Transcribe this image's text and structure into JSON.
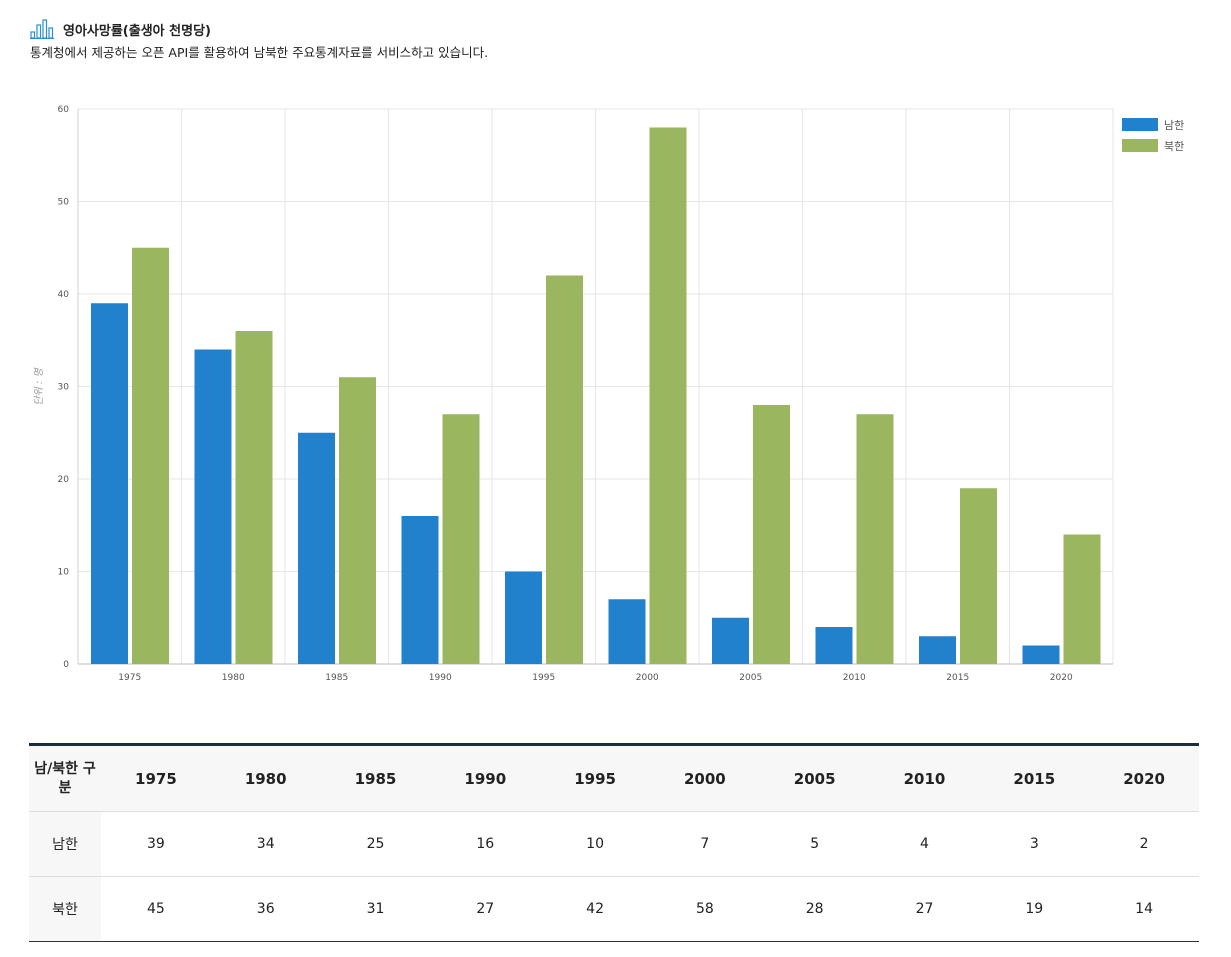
{
  "header": {
    "title": "영아사망률(출생아 천명당)",
    "subtitle": "통계청에서 제공하는 오픈 API를 활용하여 남북한 주요통계자료를 서비스하고 있습니다.",
    "icon": "bar-chart-icon"
  },
  "chart_data": {
    "type": "bar",
    "title": "",
    "xlabel": "",
    "ylabel": "단위 : 명",
    "categories": [
      "1975",
      "1980",
      "1985",
      "1990",
      "1995",
      "2000",
      "2005",
      "2010",
      "2015",
      "2020"
    ],
    "series": [
      {
        "name": "남한",
        "color": "#2281cd",
        "values": [
          39,
          34,
          25,
          16,
          10,
          7,
          5,
          4,
          3,
          2
        ]
      },
      {
        "name": "북한",
        "color": "#9ab65e",
        "values": [
          45,
          36,
          31,
          27,
          42,
          58,
          28,
          27,
          19,
          14
        ]
      }
    ],
    "ylim": [
      0,
      60
    ],
    "yticks": [
      0,
      10,
      20,
      30,
      40,
      50,
      60
    ],
    "grid": true,
    "legend": "top-right"
  },
  "table": {
    "corner_label": "남/북한 구분",
    "years": [
      "1975",
      "1980",
      "1985",
      "1990",
      "1995",
      "2000",
      "2005",
      "2010",
      "2015",
      "2020"
    ],
    "rows": [
      {
        "label": "남한",
        "values": [
          "39",
          "34",
          "25",
          "16",
          "10",
          "7",
          "5",
          "4",
          "3",
          "2"
        ]
      },
      {
        "label": "북한",
        "values": [
          "45",
          "36",
          "31",
          "27",
          "42",
          "58",
          "28",
          "27",
          "19",
          "14"
        ]
      }
    ]
  }
}
